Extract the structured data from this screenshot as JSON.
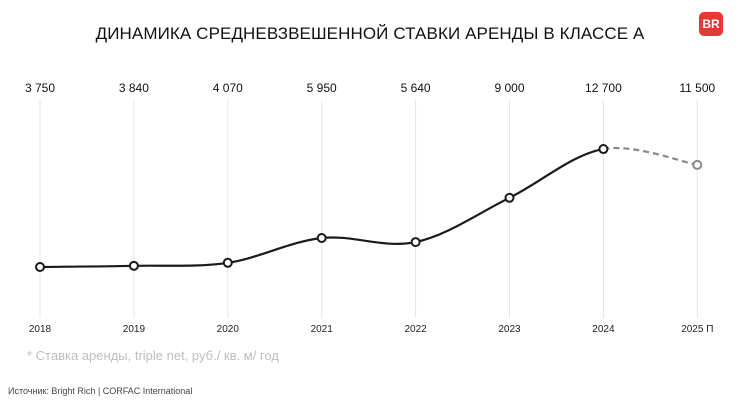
{
  "header": {
    "title": "ДИНАМИКА СРЕДНЕВЗВЕШЕННОЙ СТАВКИ АРЕНДЫ В КЛАССЕ А",
    "logo_text": "BR",
    "logo_color": "#e53935"
  },
  "chart_data": {
    "type": "line",
    "title": "ДИНАМИКА СРЕДНЕВЗВЕШЕННОЙ СТАВКИ АРЕНДЫ В КЛАССЕ А",
    "categories": [
      "2018",
      "2019",
      "2020",
      "2021",
      "2022",
      "2023",
      "2024",
      "2025 П"
    ],
    "value_labels": [
      "3 750",
      "3 840",
      "4 070",
      "5 950",
      "5 640",
      "9 000",
      "12 700",
      "11 500"
    ],
    "values": [
      3750,
      3840,
      4070,
      5950,
      5640,
      9000,
      12700,
      11500
    ],
    "forecast_from_index": 6,
    "xlabel": "",
    "ylabel": "",
    "grid": "vertical",
    "colors": {
      "line": "#1a1a1a",
      "forecast": "#8a8a8a",
      "grid": "#e6e6e6"
    }
  },
  "footer": {
    "note": "* Ставка аренды, triple net, руб./ кв. м/ год",
    "source": "Источник: Bright Rich | CORFAC International"
  }
}
